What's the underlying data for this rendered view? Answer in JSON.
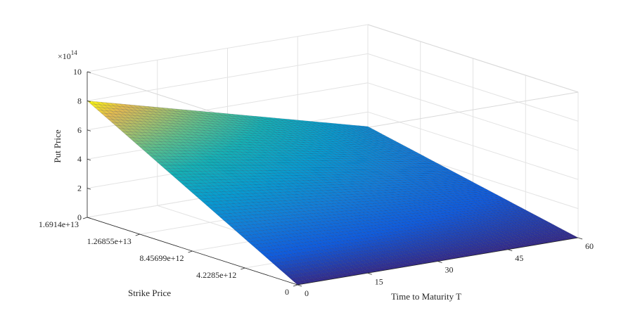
{
  "chart_data": {
    "type": "surface",
    "xlabel": "Time to Maturity T",
    "ylabel": "Strike Price",
    "zlabel": "Put Price",
    "z_multiplier": "×10",
    "z_exponent": "14",
    "x_ticks": [
      "0",
      "15",
      "30",
      "45",
      "60"
    ],
    "y_ticks": [
      "0",
      "4.2285e+12",
      "8.45699e+12",
      "1.26855e+13",
      "1.6914e+13"
    ],
    "z_ticks": [
      "0",
      "2",
      "4",
      "6",
      "8",
      "10"
    ],
    "x_range": [
      0,
      60
    ],
    "y_range": [
      0,
      16914000000000.0
    ],
    "z_range": [
      0,
      10
    ],
    "colormap": "parula",
    "corner_values": {
      "T0_K0": 0,
      "T60_K0": 0,
      "T0_Kmax": 8.0,
      "T60_Kmax": 3.0
    },
    "grid": true
  }
}
